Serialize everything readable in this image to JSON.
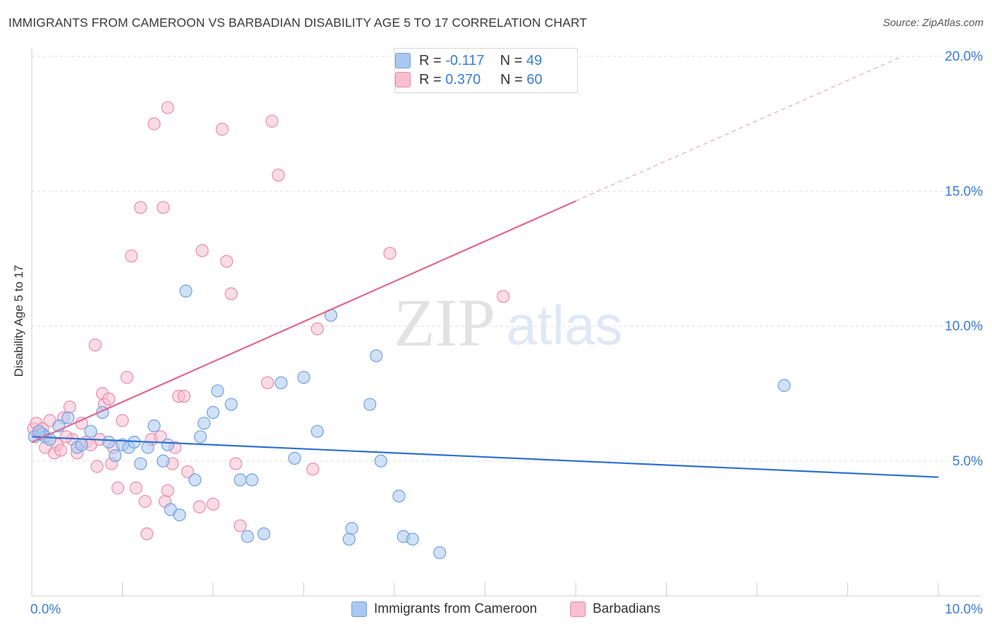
{
  "header": {
    "title": "IMMIGRANTS FROM CAMEROON VS BARBADIAN DISABILITY AGE 5 TO 17 CORRELATION CHART",
    "source": "Source: ZipAtlas.com"
  },
  "legend": {
    "rows": [
      {
        "r_label": "R =",
        "r_value": "-0.117",
        "n_label": "N =",
        "n_value": "49"
      },
      {
        "r_label": "R =",
        "r_value": "0.370",
        "n_label": "N =",
        "n_value": "60"
      }
    ]
  },
  "watermark": {
    "zip": "ZIP",
    "atlas": "atlas"
  },
  "colors": {
    "blue_fill": "#a9c8f0",
    "blue_stroke": "#6f9fe0",
    "blue_line": "#2f6fcf",
    "pink_fill": "#f7bfd0",
    "pink_stroke": "#e88aa8",
    "pink_line": "#e0688f",
    "tick_label": "#3a7bd5",
    "grid": "#dddddd"
  },
  "chart_data": {
    "type": "scatter",
    "title": "IMMIGRANTS FROM CAMEROON VS BARBADIAN DISABILITY AGE 5 TO 17 CORRELATION CHART",
    "xlabel": "",
    "ylabel": "Disability Age 5 to 17",
    "xlim": [
      0,
      10
    ],
    "ylim": [
      0,
      20
    ],
    "x_tick_labels": [
      "0.0%",
      "10.0%"
    ],
    "y_ticks": [
      5,
      10,
      15,
      20
    ],
    "y_tick_labels": [
      "5.0%",
      "10.0%",
      "15.0%",
      "20.0%"
    ],
    "series": [
      {
        "name": "Immigrants from Cameroon",
        "color": "blue",
        "r": -0.117,
        "n": 49,
        "trend": {
          "x": [
            0,
            10
          ],
          "y": [
            5.9,
            4.4
          ],
          "solid_to": 10
        },
        "points": [
          [
            0.03,
            5.9
          ],
          [
            0.12,
            6.0
          ],
          [
            0.15,
            5.9
          ],
          [
            0.3,
            6.3
          ],
          [
            0.4,
            6.6
          ],
          [
            0.5,
            5.5
          ],
          [
            0.55,
            5.6
          ],
          [
            0.65,
            6.1
          ],
          [
            0.78,
            6.8
          ],
          [
            0.85,
            5.7
          ],
          [
            0.92,
            5.2
          ],
          [
            1.0,
            5.6
          ],
          [
            1.07,
            5.5
          ],
          [
            1.13,
            5.7
          ],
          [
            1.2,
            4.9
          ],
          [
            1.28,
            5.5
          ],
          [
            1.35,
            6.3
          ],
          [
            1.45,
            5.0
          ],
          [
            1.5,
            5.6
          ],
          [
            1.53,
            3.2
          ],
          [
            1.63,
            3.0
          ],
          [
            1.7,
            11.3
          ],
          [
            1.8,
            4.3
          ],
          [
            1.86,
            5.9
          ],
          [
            1.9,
            6.4
          ],
          [
            2.0,
            6.8
          ],
          [
            2.05,
            7.6
          ],
          [
            2.2,
            7.1
          ],
          [
            2.3,
            4.3
          ],
          [
            2.38,
            2.2
          ],
          [
            2.43,
            4.3
          ],
          [
            2.56,
            2.3
          ],
          [
            2.75,
            7.9
          ],
          [
            2.9,
            5.1
          ],
          [
            3.0,
            8.1
          ],
          [
            3.15,
            6.1
          ],
          [
            3.3,
            10.4
          ],
          [
            3.5,
            2.1
          ],
          [
            3.53,
            2.5
          ],
          [
            3.73,
            7.1
          ],
          [
            3.8,
            8.9
          ],
          [
            3.85,
            5.0
          ],
          [
            4.05,
            3.7
          ],
          [
            4.1,
            2.2
          ],
          [
            4.2,
            2.1
          ],
          [
            4.5,
            1.6
          ],
          [
            8.3,
            7.8
          ],
          [
            0.08,
            6.1
          ],
          [
            0.2,
            5.8
          ]
        ]
      },
      {
        "name": "Barbadians",
        "color": "pink",
        "r": 0.37,
        "n": 60,
        "trend": {
          "x": [
            0,
            9.6
          ],
          "y": [
            5.7,
            20.0
          ],
          "solid_to": 6.0
        },
        "points": [
          [
            0.02,
            6.2
          ],
          [
            0.05,
            6.4
          ],
          [
            0.08,
            6.0
          ],
          [
            0.12,
            6.2
          ],
          [
            0.15,
            5.5
          ],
          [
            0.2,
            6.5
          ],
          [
            0.25,
            5.3
          ],
          [
            0.28,
            5.6
          ],
          [
            0.32,
            5.4
          ],
          [
            0.35,
            6.6
          ],
          [
            0.42,
            7.0
          ],
          [
            0.45,
            5.8
          ],
          [
            0.5,
            5.3
          ],
          [
            0.55,
            6.4
          ],
          [
            0.6,
            5.7
          ],
          [
            0.65,
            5.6
          ],
          [
            0.7,
            9.3
          ],
          [
            0.72,
            4.8
          ],
          [
            0.75,
            5.8
          ],
          [
            0.78,
            7.5
          ],
          [
            0.8,
            7.1
          ],
          [
            0.85,
            7.3
          ],
          [
            0.88,
            4.9
          ],
          [
            0.9,
            5.5
          ],
          [
            0.95,
            4.0
          ],
          [
            1.0,
            6.5
          ],
          [
            1.05,
            8.1
          ],
          [
            1.1,
            12.6
          ],
          [
            1.15,
            4.0
          ],
          [
            1.2,
            14.4
          ],
          [
            1.25,
            3.5
          ],
          [
            1.27,
            2.3
          ],
          [
            1.32,
            5.8
          ],
          [
            1.35,
            17.5
          ],
          [
            1.42,
            5.9
          ],
          [
            1.45,
            14.4
          ],
          [
            1.47,
            3.5
          ],
          [
            1.5,
            3.9
          ],
          [
            1.5,
            18.1
          ],
          [
            1.55,
            4.9
          ],
          [
            1.58,
            5.5
          ],
          [
            1.62,
            7.4
          ],
          [
            1.68,
            7.4
          ],
          [
            1.72,
            4.6
          ],
          [
            1.85,
            3.3
          ],
          [
            1.88,
            12.8
          ],
          [
            2.0,
            3.4
          ],
          [
            2.1,
            17.3
          ],
          [
            2.15,
            12.4
          ],
          [
            2.2,
            11.2
          ],
          [
            2.25,
            4.9
          ],
          [
            2.3,
            2.6
          ],
          [
            2.6,
            7.9
          ],
          [
            2.65,
            17.6
          ],
          [
            2.72,
            15.6
          ],
          [
            3.1,
            4.7
          ],
          [
            3.15,
            9.9
          ],
          [
            3.95,
            12.7
          ],
          [
            5.2,
            11.1
          ],
          [
            0.38,
            5.9
          ]
        ]
      }
    ]
  }
}
